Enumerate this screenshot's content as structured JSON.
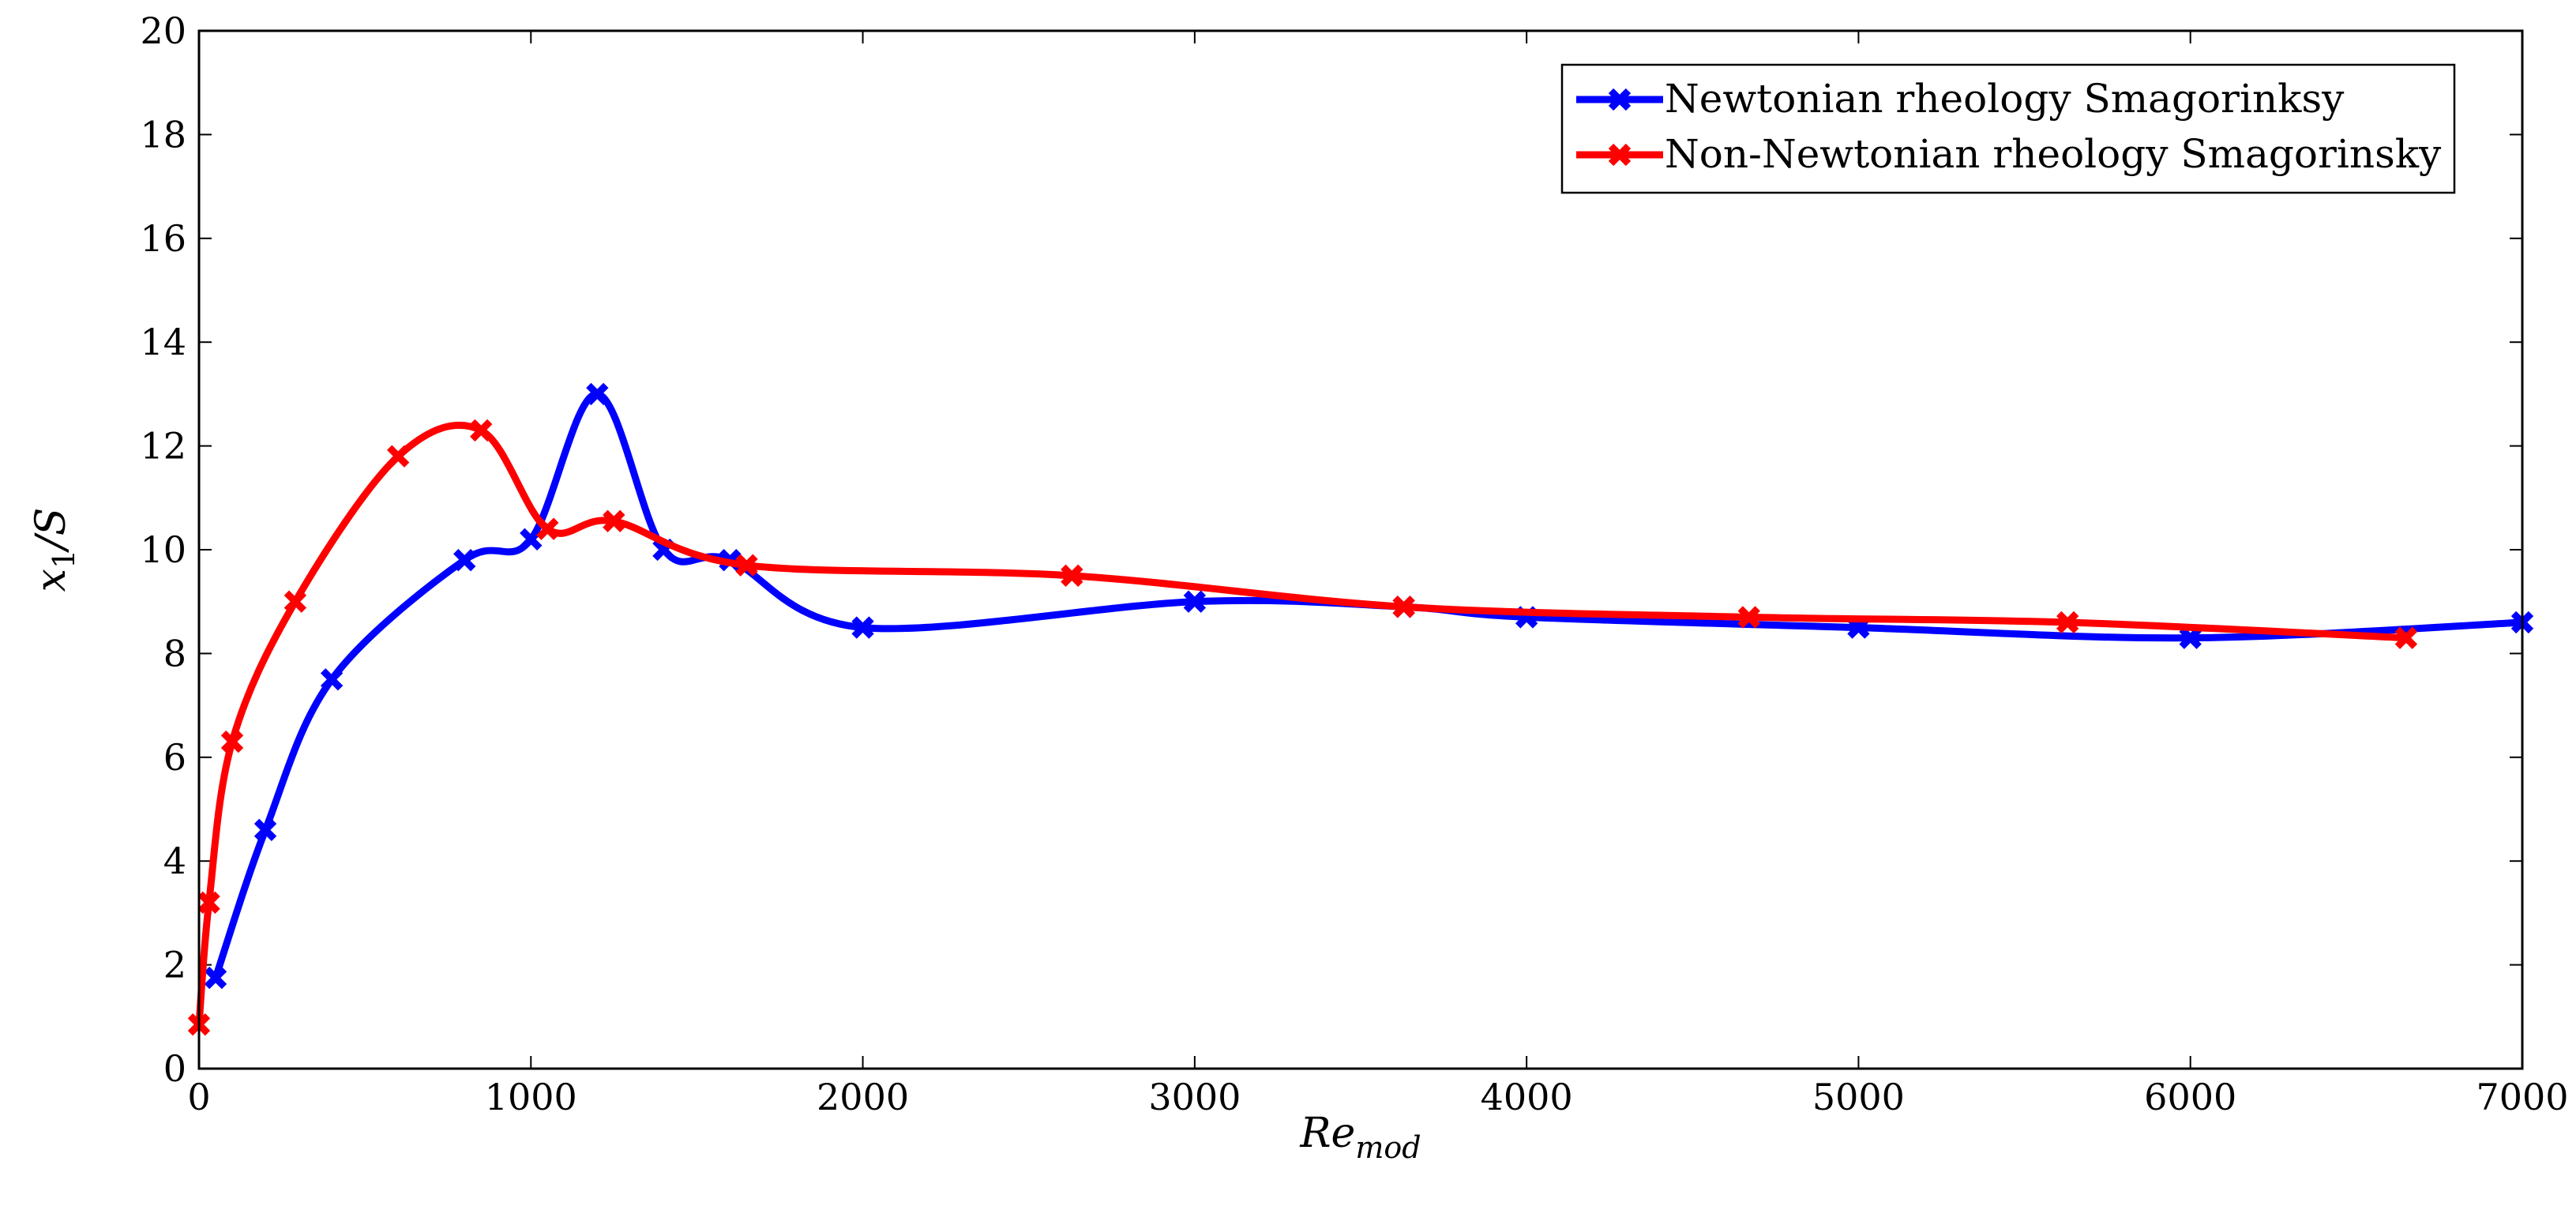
{
  "chart_data": {
    "type": "line",
    "title": "",
    "xlabel_main": "Re",
    "xlabel_sub": "mod",
    "ylabel_main": "x",
    "ylabel_sub": "1",
    "ylabel_tail": "/S",
    "xlim": [
      0,
      7000
    ],
    "ylim": [
      0,
      20
    ],
    "x_ticks": [
      0,
      1000,
      2000,
      3000,
      4000,
      5000,
      6000,
      7000
    ],
    "y_ticks": [
      0,
      2,
      4,
      6,
      8,
      10,
      12,
      14,
      16,
      18,
      20
    ],
    "grid": false,
    "legend_position": "top-right",
    "series": [
      {
        "name": "Newtonian rheology Smagorinksy",
        "color": "#0000ff",
        "x": [
          50,
          200,
          400,
          800,
          1000,
          1200,
          1400,
          1600,
          2000,
          3000,
          3630,
          4000,
          5000,
          6000,
          7000
        ],
        "y": [
          1.75,
          4.6,
          7.5,
          9.8,
          10.2,
          13.0,
          10.0,
          9.8,
          8.5,
          9.0,
          8.9,
          8.7,
          8.5,
          8.3,
          8.6
        ]
      },
      {
        "name": "Non-Newtonian rheology Smagorinsky",
        "color": "#ff0000",
        "x": [
          0,
          30,
          100,
          290,
          600,
          850,
          1050,
          1250,
          1650,
          2630,
          3630,
          4670,
          5630,
          6650
        ],
        "y": [
          0.85,
          3.2,
          6.3,
          9.0,
          11.8,
          12.3,
          10.4,
          10.55,
          9.7,
          9.5,
          8.9,
          8.7,
          8.6,
          8.3
        ]
      }
    ]
  }
}
